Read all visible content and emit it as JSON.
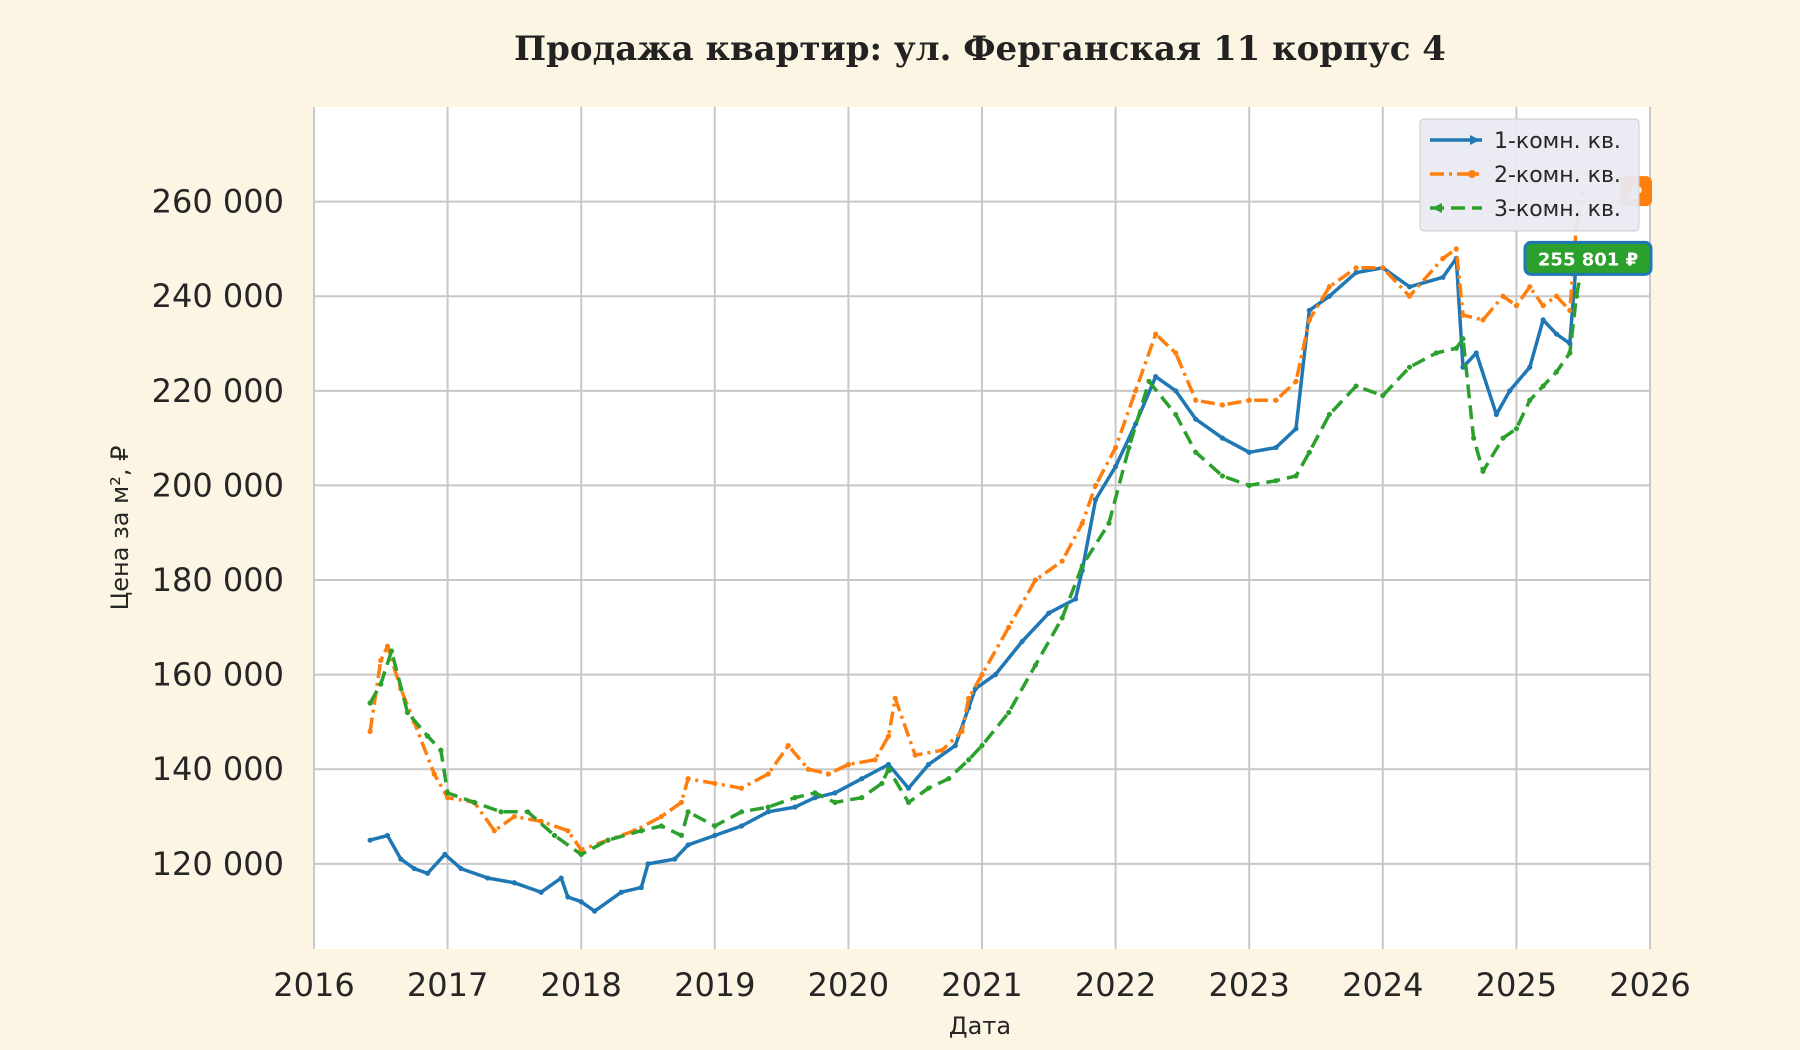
{
  "chart_data": {
    "type": "line",
    "title": "Продажа квартир: ул. Ферганская 11 корпус 4",
    "xlabel": "Дата",
    "ylabel": "Цена за м², ₽",
    "xlim": [
      2016.0,
      2026.0
    ],
    "ylim": [
      102000,
      280000
    ],
    "x_ticks": [
      "2016",
      "2017",
      "2018",
      "2019",
      "2020",
      "2021",
      "2022",
      "2023",
      "2024",
      "2025",
      "2026"
    ],
    "y_ticks": [
      "120 000",
      "140 000",
      "160 000",
      "180 000",
      "200 000",
      "220 000",
      "240 000",
      "260 000"
    ],
    "grid": true,
    "legend_position": "top-right",
    "series": [
      {
        "name": "1-комн. кв.",
        "color": "#1f77b4",
        "dash": "solid",
        "marker": "triangle-right",
        "x": [
          2016.42,
          2016.55,
          2016.65,
          2016.75,
          2016.85,
          2016.98,
          2017.1,
          2017.3,
          2017.5,
          2017.7,
          2017.85,
          2017.9,
          2018.0,
          2018.1,
          2018.3,
          2018.45,
          2018.5,
          2018.7,
          2018.8,
          2019.0,
          2019.2,
          2019.4,
          2019.6,
          2019.75,
          2019.9,
          2020.1,
          2020.3,
          2020.45,
          2020.6,
          2020.8,
          2020.9,
          2020.95,
          2021.1,
          2021.3,
          2021.5,
          2021.7,
          2021.75,
          2021.85,
          2022.0,
          2022.15,
          2022.3,
          2022.45,
          2022.6,
          2022.8,
          2023.0,
          2023.2,
          2023.35,
          2023.45,
          2023.6,
          2023.8,
          2024.0,
          2024.2,
          2024.45,
          2024.55,
          2024.6,
          2024.7,
          2024.85,
          2024.95,
          2025.1,
          2025.2,
          2025.3,
          2025.4,
          2025.45,
          2025.5
        ],
        "y": [
          125000,
          126000,
          121000,
          119000,
          118000,
          122000,
          119000,
          117000,
          116000,
          114000,
          117000,
          113000,
          112000,
          110000,
          114000,
          115000,
          120000,
          121000,
          124000,
          126000,
          128000,
          131000,
          132000,
          134000,
          135000,
          138000,
          141000,
          136000,
          141000,
          145000,
          153000,
          157000,
          160000,
          167000,
          173000,
          176000,
          182000,
          197000,
          204000,
          213000,
          223000,
          220000,
          214000,
          210000,
          207000,
          208000,
          212000,
          237000,
          240000,
          245000,
          246000,
          242000,
          244000,
          248000,
          225000,
          228000,
          215000,
          220000,
          225000,
          235000,
          232000,
          230000,
          248000,
          250000
        ]
      },
      {
        "name": "2-комн. кв.",
        "color": "#ff7f0e",
        "dash": "dashdot",
        "marker": "point",
        "x": [
          2016.42,
          2016.5,
          2016.55,
          2016.65,
          2016.75,
          2016.9,
          2017.0,
          2017.2,
          2017.35,
          2017.5,
          2017.7,
          2017.9,
          2018.0,
          2018.2,
          2018.4,
          2018.6,
          2018.75,
          2018.8,
          2019.0,
          2019.2,
          2019.4,
          2019.55,
          2019.7,
          2019.85,
          2020.0,
          2020.2,
          2020.3,
          2020.35,
          2020.5,
          2020.7,
          2020.85,
          2020.9,
          2021.0,
          2021.2,
          2021.4,
          2021.6,
          2021.75,
          2021.85,
          2022.0,
          2022.15,
          2022.3,
          2022.45,
          2022.6,
          2022.8,
          2023.0,
          2023.2,
          2023.35,
          2023.45,
          2023.6,
          2023.8,
          2024.0,
          2024.2,
          2024.45,
          2024.55,
          2024.6,
          2024.75,
          2024.9,
          2025.0,
          2025.1,
          2025.2,
          2025.3,
          2025.4,
          2025.45,
          2025.5
        ],
        "y": [
          148000,
          163000,
          166000,
          157000,
          150000,
          139000,
          134000,
          133000,
          127000,
          130000,
          129000,
          127000,
          123000,
          125000,
          127000,
          130000,
          133000,
          138000,
          137000,
          136000,
          139000,
          145000,
          140000,
          139000,
          141000,
          142000,
          147000,
          155000,
          143000,
          144000,
          148000,
          155000,
          160000,
          170000,
          180000,
          184000,
          192000,
          200000,
          208000,
          220000,
          232000,
          228000,
          218000,
          217000,
          218000,
          218000,
          222000,
          235000,
          242000,
          246000,
          246000,
          240000,
          248000,
          250000,
          236000,
          235000,
          240000,
          238000,
          242000,
          238000,
          240000,
          237000,
          255000,
          262000
        ]
      },
      {
        "name": "3-комн. кв.",
        "color": "#2ca02c",
        "dash": "dashed",
        "marker": "triangle-left",
        "x": [
          2016.42,
          2016.5,
          2016.58,
          2016.7,
          2016.85,
          2016.95,
          2017.0,
          2017.2,
          2017.4,
          2017.6,
          2017.8,
          2018.0,
          2018.2,
          2018.45,
          2018.6,
          2018.75,
          2018.8,
          2019.0,
          2019.2,
          2019.4,
          2019.6,
          2019.75,
          2019.9,
          2020.1,
          2020.25,
          2020.3,
          2020.45,
          2020.6,
          2020.75,
          2020.9,
          2021.0,
          2021.2,
          2021.4,
          2021.6,
          2021.75,
          2021.95,
          2022.1,
          2022.25,
          2022.45,
          2022.6,
          2022.8,
          2023.0,
          2023.2,
          2023.35,
          2023.45,
          2023.6,
          2023.8,
          2024.0,
          2024.2,
          2024.4,
          2024.55,
          2024.6,
          2024.68,
          2024.75,
          2024.9,
          2025.0,
          2025.1,
          2025.2,
          2025.3,
          2025.4,
          2025.45,
          2025.5
        ],
        "y": [
          154000,
          158000,
          165000,
          152000,
          147000,
          144000,
          135000,
          133000,
          131000,
          131000,
          126000,
          122000,
          125000,
          127000,
          128000,
          126000,
          131000,
          128000,
          131000,
          132000,
          134000,
          135000,
          133000,
          134000,
          137000,
          140000,
          133000,
          136000,
          138000,
          142000,
          145000,
          152000,
          162000,
          172000,
          183000,
          192000,
          208000,
          222000,
          215000,
          207000,
          202000,
          200000,
          201000,
          202000,
          207000,
          215000,
          221000,
          219000,
          225000,
          228000,
          229000,
          231000,
          210000,
          203000,
          210000,
          212000,
          218000,
          221000,
          224000,
          228000,
          240000,
          248000
        ]
      }
    ],
    "annotations": [
      {
        "text": "255 801 ₽",
        "series": "3-комн. кв.",
        "color": "#2ca02c"
      },
      {
        "text": "₽",
        "series": "2-комн. кв.",
        "color": "#ff7f0e"
      }
    ]
  }
}
